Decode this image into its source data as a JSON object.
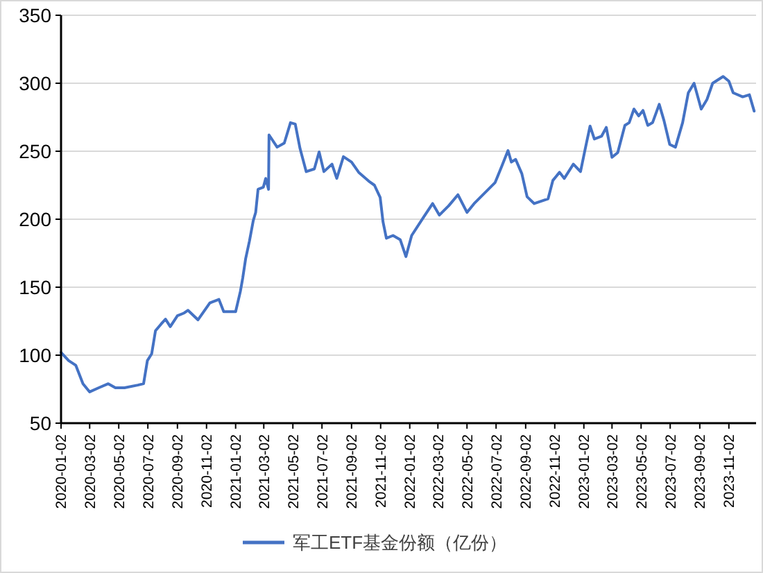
{
  "chart_data": {
    "type": "line",
    "grid": "y",
    "legend": "bottom",
    "marker": "none",
    "line_style": "solid",
    "xlim": [
      "2020-01-02",
      "2023-12-29"
    ],
    "xticks": [
      "2020-01-02",
      "2020-03-02",
      "2020-05-02",
      "2020-07-02",
      "2020-09-02",
      "2020-11-02",
      "2021-01-02",
      "2021-03-02",
      "2021-05-02",
      "2021-07-02",
      "2021-09-02",
      "2021-11-02",
      "2022-01-02",
      "2022-03-02",
      "2022-05-02",
      "2022-07-02",
      "2022-09-02",
      "2022-11-02",
      "2023-01-02",
      "2023-03-02",
      "2023-05-02",
      "2023-07-02",
      "2023-09-02",
      "2023-11-02"
    ],
    "ylim": [
      50,
      350
    ],
    "yticks": [
      50,
      100,
      150,
      200,
      250,
      300,
      350
    ],
    "x": [
      "2020-01-02",
      "2020-01-18",
      "2020-02-02",
      "2020-02-17",
      "2020-03-02",
      "2020-03-21",
      "2020-04-10",
      "2020-04-25",
      "2020-05-14",
      "2020-06-11",
      "2020-06-23",
      "2020-07-01",
      "2020-07-10",
      "2020-07-18",
      "2020-07-30",
      "2020-08-08",
      "2020-08-18",
      "2020-09-02",
      "2020-09-16",
      "2020-09-24",
      "2020-10-15",
      "2020-11-09",
      "2020-11-28",
      "2020-12-08",
      "2021-01-02",
      "2021-01-12",
      "2021-01-17",
      "2021-01-23",
      "2021-01-31",
      "2021-02-08",
      "2021-02-13",
      "2021-02-18",
      "2021-03-01",
      "2021-03-06",
      "2021-03-12",
      "2021-03-13",
      "2021-03-30",
      "2021-04-14",
      "2021-04-27",
      "2021-05-07",
      "2021-05-17",
      "2021-05-30",
      "2021-06-16",
      "2021-06-26",
      "2021-07-06",
      "2021-07-23",
      "2021-08-02",
      "2021-08-16",
      "2021-09-02",
      "2021-09-17",
      "2021-10-08",
      "2021-10-20",
      "2021-11-01",
      "2021-11-07",
      "2021-11-14",
      "2021-11-28",
      "2021-12-13",
      "2021-12-25",
      "2022-01-06",
      "2022-01-30",
      "2022-02-19",
      "2022-03-05",
      "2022-03-25",
      "2022-04-13",
      "2022-05-02",
      "2022-05-17",
      "2022-06-10",
      "2022-06-30",
      "2022-07-14",
      "2022-07-27",
      "2022-08-03",
      "2022-08-12",
      "2022-08-25",
      "2022-09-05",
      "2022-09-20",
      "2022-10-19",
      "2022-10-29",
      "2022-11-12",
      "2022-11-22",
      "2022-12-11",
      "2022-12-26",
      "2023-01-05",
      "2023-01-15",
      "2023-01-24",
      "2023-02-08",
      "2023-02-18",
      "2023-03-02",
      "2023-03-14",
      "2023-03-29",
      "2023-04-07",
      "2023-04-17",
      "2023-04-27",
      "2023-05-06",
      "2023-05-16",
      "2023-05-26",
      "2023-06-09",
      "2023-06-19",
      "2023-07-01",
      "2023-07-13",
      "2023-07-28",
      "2023-08-09",
      "2023-08-21",
      "2023-09-05",
      "2023-09-17",
      "2023-09-29",
      "2023-10-21",
      "2023-11-02",
      "2023-11-11",
      "2023-12-01",
      "2023-12-15",
      "2023-12-25"
    ],
    "series": [
      {
        "name": "军工ETF基金份额（亿份）",
        "color": "#4472c4",
        "values": [
          102,
          96,
          92.5,
          79,
          73,
          76,
          79,
          76,
          76,
          78,
          79,
          96,
          101,
          118,
          123,
          126.5,
          121,
          129,
          131,
          133,
          126,
          138.5,
          141,
          132,
          132,
          147,
          157,
          171,
          184,
          199,
          205,
          222,
          223.5,
          230,
          222,
          262,
          253,
          256,
          271,
          270,
          252,
          235,
          237,
          249.5,
          235,
          240.5,
          230,
          246,
          242,
          234.5,
          228,
          225,
          216,
          198,
          186,
          188,
          185,
          172.5,
          188,
          201,
          211.5,
          203,
          210,
          218,
          205,
          211.5,
          220,
          227,
          239,
          250.5,
          242,
          244,
          233.5,
          216.5,
          211.5,
          215,
          228.5,
          234.5,
          230,
          240.5,
          235,
          252,
          268.5,
          259,
          261,
          267.5,
          245.5,
          249,
          269,
          271,
          281,
          276,
          280,
          269,
          271,
          284.5,
          272.5,
          255,
          253,
          271,
          293,
          300,
          281,
          288,
          300,
          305,
          301.5,
          293,
          290,
          291.5,
          279.5
        ]
      }
    ]
  }
}
